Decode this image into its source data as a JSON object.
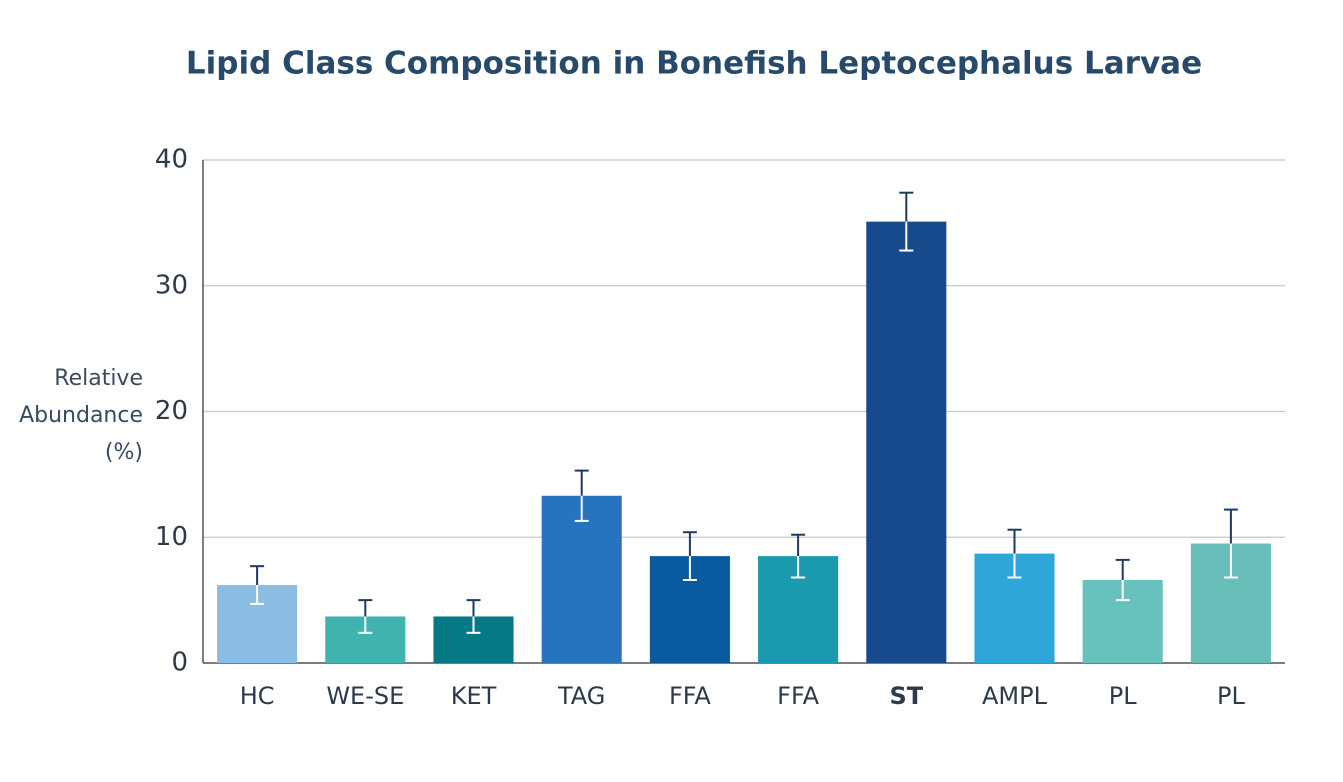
{
  "chart_data": {
    "type": "bar",
    "title": "Lipid Class Composition in Bonefish Leptocephalus Larvae",
    "y_label": "Relative Abundance (%)",
    "categories": [
      "HC",
      "WE-SE",
      "KET",
      "TAG",
      "FFA",
      "FFA",
      "ST",
      "AMPL",
      "PL",
      "PL"
    ],
    "values": [
      6.2,
      3.7,
      3.7,
      13.3,
      8.5,
      8.5,
      35.1,
      8.7,
      6.6,
      9.5
    ],
    "errors": [
      1.5,
      1.3,
      1.3,
      2.0,
      1.9,
      1.7,
      2.3,
      1.9,
      1.6,
      2.7
    ],
    "colors": [
      "#8bbde3",
      "#3fb3b0",
      "#057a85",
      "#2674c0",
      "#0a5aa0",
      "#1a9aae",
      "#164a8c",
      "#2ea6d8",
      "#66c0bc",
      "#67bdb8"
    ],
    "ylim": [
      0,
      40
    ],
    "yticks": [
      0,
      10,
      20,
      30,
      40
    ],
    "grid": true
  }
}
